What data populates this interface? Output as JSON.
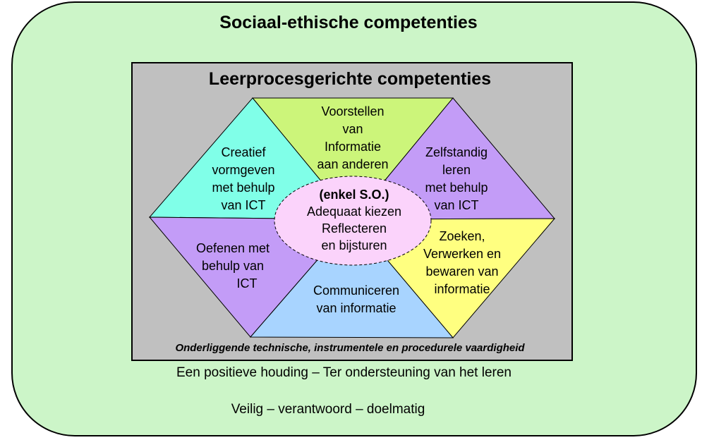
{
  "titles": {
    "outer": "Sociaal-ethische competenties",
    "inner": "Leerprocesgerichte competenties"
  },
  "segments": {
    "top": [
      "Voorstellen",
      "van",
      "Informatie",
      "aan anderen"
    ],
    "upper_left": [
      "Creatief",
      "vormgeven",
      "met behulp",
      "van ICT"
    ],
    "upper_right": [
      "Zelfstandig",
      "leren",
      "met behulp",
      "van  ICT"
    ],
    "lower_left": [
      "Oefenen met",
      "behulp van",
      "ICT"
    ],
    "lower_right": [
      "Zoeken,",
      "Verwerken en",
      "bewaren van",
      "informatie"
    ],
    "bottom": [
      "Communiceren",
      "van informatie"
    ]
  },
  "center": {
    "heading": "(enkel S.O.)",
    "lines": [
      "Adequaat kiezen",
      "Reflecteren",
      "en bijsturen"
    ]
  },
  "footnote": "Onderliggende technische, instrumentele en procedurele vaardigheid",
  "bottom_lines": {
    "line1": "Een positieve houding – Ter ondersteuning van het leren",
    "line2": "Veilig – verantwoord – doelmatig"
  },
  "colors": {
    "outer_fill": "#ccf5c8",
    "panel_fill": "#c0c0c0",
    "top": "#ccf57a",
    "upper_left": "#80ffe8",
    "upper_right": "#c39cf7",
    "lower_left": "#c39cf7",
    "lower_right": "#ffff80",
    "bottom": "#a8d4ff",
    "center": "#fbd3fb"
  }
}
